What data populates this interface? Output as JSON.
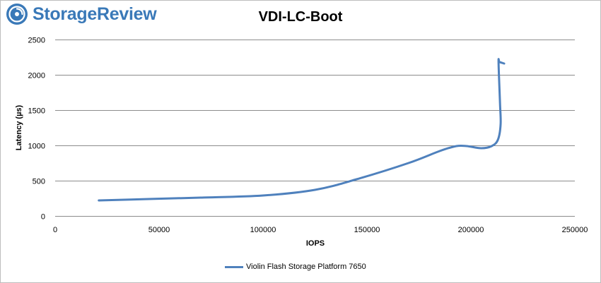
{
  "brand": {
    "name": "StorageReview",
    "color": "#3a79b8"
  },
  "chart_data": {
    "type": "line",
    "title": "VDI-LC-Boot",
    "xlabel": "IOPS",
    "ylabel": "Latency (µs)",
    "xlim": [
      0,
      250000
    ],
    "ylim": [
      0,
      2500
    ],
    "xticks": [
      0,
      50000,
      100000,
      150000,
      200000,
      250000
    ],
    "yticks": [
      0,
      500,
      1000,
      1500,
      2000,
      2500
    ],
    "grid": "horizontal",
    "legend_position": "bottom",
    "series": [
      {
        "name": "Violin Flash Storage Platform 7650",
        "color": "#4f81bd",
        "x": [
          21000,
          45000,
          70000,
          100000,
          125000,
          145000,
          170000,
          185000,
          193000,
          198000,
          205000,
          210000,
          213000,
          214300,
          214000,
          213300,
          213800,
          216000
        ],
        "y": [
          220,
          240,
          260,
          290,
          370,
          520,
          750,
          920,
          990,
          990,
          960,
          990,
          1080,
          1300,
          1600,
          2180,
          2180,
          2160
        ]
      }
    ]
  }
}
